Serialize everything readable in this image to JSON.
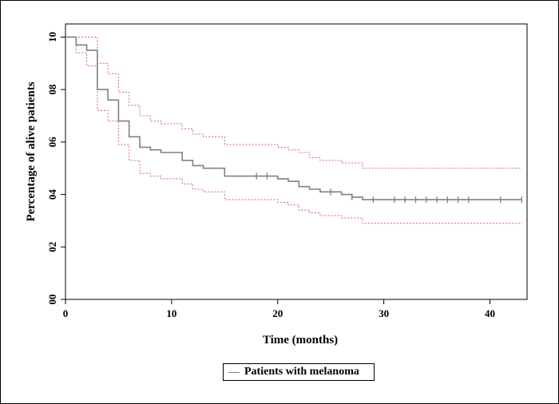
{
  "chart_data": {
    "type": "line",
    "title": "",
    "xlabel": "Time (months)",
    "ylabel": "Percentage of alive patients",
    "xlim": [
      0,
      43.5
    ],
    "ylim": [
      0,
      1.05
    ],
    "x_ticks": [
      0,
      10,
      20,
      30,
      40
    ],
    "x_tick_labels": [
      "0",
      "10",
      "20",
      "30",
      "40"
    ],
    "y_ticks": [
      0,
      0.2,
      0.4,
      0.6,
      0.8,
      1.0
    ],
    "y_tick_labels": [
      "00",
      "02",
      "04",
      "06",
      "08",
      "10"
    ],
    "grid": false,
    "legend_position": "bottom-center",
    "colors": {
      "survival": "#808080",
      "ci": "#e07070"
    },
    "series": [
      {
        "name": "Patients with melanoma",
        "role": "estimate",
        "steps": [
          [
            0,
            1.0
          ],
          [
            1,
            0.97
          ],
          [
            2,
            0.95
          ],
          [
            3,
            0.8
          ],
          [
            4,
            0.76
          ],
          [
            5,
            0.68
          ],
          [
            6,
            0.62
          ],
          [
            7,
            0.58
          ],
          [
            8,
            0.57
          ],
          [
            9,
            0.56
          ],
          [
            11,
            0.53
          ],
          [
            12,
            0.51
          ],
          [
            13,
            0.5
          ],
          [
            15,
            0.47
          ],
          [
            20,
            0.46
          ],
          [
            21,
            0.45
          ],
          [
            22,
            0.43
          ],
          [
            23,
            0.42
          ],
          [
            24,
            0.41
          ],
          [
            26,
            0.4
          ],
          [
            27,
            0.39
          ],
          [
            28,
            0.38
          ],
          [
            43,
            0.38
          ]
        ],
        "censored_x": [
          18,
          19,
          25,
          27,
          29,
          31,
          32,
          33,
          34,
          35,
          36,
          37,
          38,
          41,
          43
        ]
      },
      {
        "role": "upper_ci",
        "steps": [
          [
            0,
            1.0
          ],
          [
            2,
            1.0
          ],
          [
            3,
            0.9
          ],
          [
            4,
            0.86
          ],
          [
            5,
            0.79
          ],
          [
            6,
            0.74
          ],
          [
            7,
            0.7
          ],
          [
            8,
            0.68
          ],
          [
            9,
            0.67
          ],
          [
            11,
            0.65
          ],
          [
            12,
            0.63
          ],
          [
            13,
            0.62
          ],
          [
            15,
            0.59
          ],
          [
            20,
            0.58
          ],
          [
            21,
            0.57
          ],
          [
            22,
            0.56
          ],
          [
            23,
            0.54
          ],
          [
            24,
            0.53
          ],
          [
            26,
            0.52
          ],
          [
            28,
            0.5
          ],
          [
            43,
            0.5
          ]
        ]
      },
      {
        "role": "lower_ci",
        "steps": [
          [
            0,
            1.0
          ],
          [
            1,
            0.94
          ],
          [
            2,
            0.89
          ],
          [
            3,
            0.72
          ],
          [
            4,
            0.68
          ],
          [
            5,
            0.59
          ],
          [
            6,
            0.53
          ],
          [
            7,
            0.48
          ],
          [
            8,
            0.47
          ],
          [
            9,
            0.46
          ],
          [
            11,
            0.44
          ],
          [
            12,
            0.42
          ],
          [
            13,
            0.41
          ],
          [
            15,
            0.38
          ],
          [
            20,
            0.37
          ],
          [
            21,
            0.36
          ],
          [
            22,
            0.34
          ],
          [
            23,
            0.33
          ],
          [
            24,
            0.32
          ],
          [
            26,
            0.31
          ],
          [
            28,
            0.29
          ],
          [
            43,
            0.29
          ]
        ]
      }
    ]
  }
}
